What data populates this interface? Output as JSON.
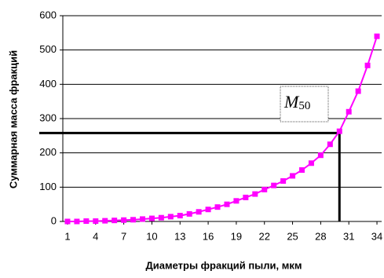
{
  "chart_data": {
    "type": "line",
    "x_label": "Диаметры фракций пыли, мкм",
    "y_label": "Суммарная масса фракций",
    "annotation_symbol": "M",
    "annotation_subscript": "50",
    "x": [
      1,
      2,
      3,
      4,
      5,
      6,
      7,
      8,
      9,
      10,
      11,
      12,
      13,
      14,
      15,
      16,
      17,
      18,
      19,
      20,
      21,
      22,
      23,
      24,
      25,
      26,
      27,
      28,
      29,
      30,
      31,
      32,
      33,
      34
    ],
    "series": [
      {
        "color": "#ff00ff",
        "values": [
          0,
          0,
          1,
          1,
          2,
          3,
          4,
          5,
          7,
          9,
          11,
          14,
          17,
          22,
          28,
          35,
          42,
          50,
          60,
          70,
          80,
          93,
          105,
          118,
          133,
          150,
          170,
          193,
          225,
          263,
          320,
          380,
          455,
          540
        ]
      }
    ],
    "xlim": [
      0.5,
      34.5
    ],
    "xticks": [
      1,
      4,
      7,
      10,
      13,
      16,
      19,
      22,
      25,
      28,
      31,
      34
    ],
    "ylim": [
      0,
      600
    ],
    "yticks": [
      0,
      100,
      200,
      300,
      400,
      500,
      600
    ],
    "grid": true,
    "reference": {
      "x": 30,
      "y": 258
    }
  }
}
